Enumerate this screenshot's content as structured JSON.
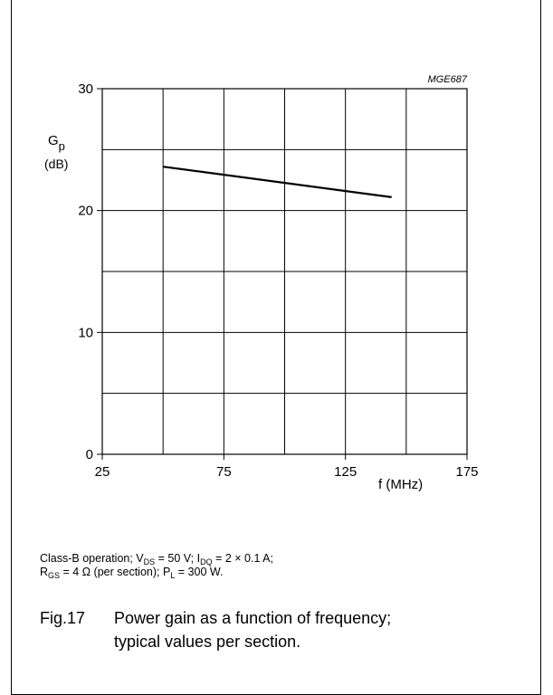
{
  "chart_data": {
    "type": "line",
    "code": "MGE687",
    "ylabel_main": "G",
    "ylabel_sub": "p",
    "ylabel_unit": "(dB)",
    "xlabel": "f (MHz)",
    "xlim": [
      25,
      175
    ],
    "ylim": [
      0,
      30
    ],
    "xticks": [
      25,
      75,
      125,
      175
    ],
    "yticks": [
      0,
      10,
      20,
      30
    ],
    "x_gridlines": [
      25,
      50,
      75,
      100,
      125,
      150,
      175
    ],
    "y_gridlines": [
      0,
      5,
      10,
      15,
      20,
      25,
      30
    ],
    "grid": true,
    "series": [
      {
        "x": [
          50,
          144
        ],
        "y": [
          23.6,
          21.1
        ]
      }
    ]
  },
  "conditions": {
    "line1": {
      "a": "Class-B operation; V",
      "a_sub": "DS",
      "b": " = 50 V; I",
      "b_sub": "DQ",
      "c": " = 2 × 0.1 A;"
    },
    "line2": {
      "a": "R",
      "a_sub": "GS",
      "b": " = 4 Ω (per section); P",
      "b_sub": "L",
      "c": " = 300 W."
    }
  },
  "caption": {
    "number": "Fig.17",
    "line1": "Power gain as a function of frequency;",
    "line2": "typical values per section."
  }
}
